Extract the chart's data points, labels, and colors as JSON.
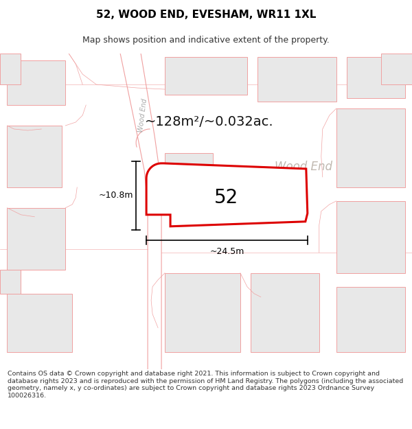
{
  "title": "52, WOOD END, EVESHAM, WR11 1XL",
  "subtitle": "Map shows position and indicative extent of the property.",
  "area_text": "~128m²/~0.032ac.",
  "width_label": "~24.5m",
  "height_label": "~10.8m",
  "number_label": "52",
  "street_label": "Wood End",
  "road_label": "Wood End",
  "footer": "Contains OS data © Crown copyright and database right 2021. This information is subject to Crown copyright and database rights 2023 and is reproduced with the permission of HM Land Registry. The polygons (including the associated geometry, namely x, y co-ordinates) are subject to Crown copyright and database rights 2023 Ordnance Survey 100026316.",
  "bg_color": "#ffffff",
  "map_bg": "#ffffff",
  "plot_fill": "#ffffff",
  "plot_edge": "#dd0000",
  "neighbor_fill": "#e8e8e8",
  "neighbor_edge": "#f0a0a0",
  "road_color": "#f0a0a0",
  "annotation_color": "#000000",
  "title_fontsize": 11,
  "subtitle_fontsize": 9,
  "footer_fontsize": 6.8,
  "area_fontsize": 14,
  "label_fontsize": 9
}
